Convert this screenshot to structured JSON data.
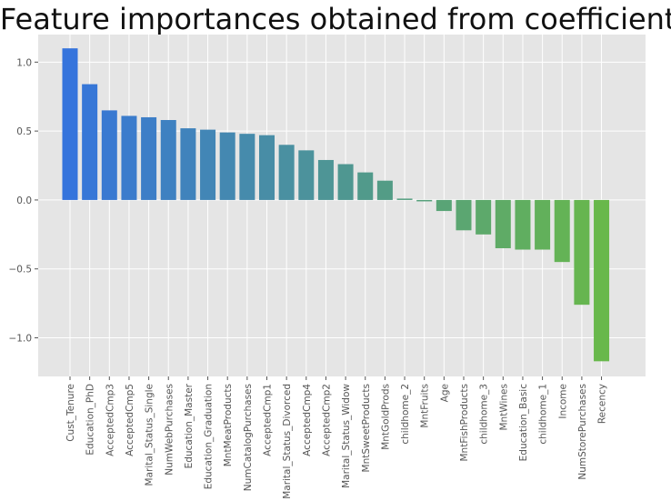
{
  "chart_data": {
    "type": "bar",
    "title": "Feature importances obtained from coefficients",
    "xlabel": "",
    "ylabel": "",
    "ylim": [
      -1.28,
      1.2
    ],
    "yticks": [
      -1.0,
      -0.5,
      0.0,
      0.5,
      1.0
    ],
    "ytick_labels": [
      "−1.0",
      "−0.5",
      "0.0",
      "0.5",
      "1.0"
    ],
    "grid": true,
    "legend": "none",
    "style": "ggplot",
    "background_color": "#e5e5e5",
    "grid_color": "#ffffff",
    "color_start": "#3574dc",
    "color_end": "#68b84b",
    "categories": [
      "Cust_Tenure",
      "Education_PhD",
      "AcceptedCmp3",
      "AcceptedCmp5",
      "Marital_Status_Single",
      "NumWebPurchases",
      "Education_Master",
      "Education_Graduation",
      "MntMeatProducts",
      "NumCatalogPurchases",
      "AcceptedCmp1",
      "Marital_Status_Divorced",
      "AcceptedCmp4",
      "AcceptedCmp2",
      "Marital_Status_Widow",
      "MntSweetProducts",
      "MntGoldProds",
      "childhome_2",
      "MntFruits",
      "Age",
      "MntFishProducts",
      "childhome_3",
      "MntWines",
      "Education_Basic",
      "childhome_1",
      "Income",
      "NumStorePurchases",
      "Recency"
    ],
    "values": [
      1.1,
      0.84,
      0.65,
      0.61,
      0.6,
      0.58,
      0.52,
      0.51,
      0.49,
      0.48,
      0.47,
      0.4,
      0.36,
      0.29,
      0.26,
      0.2,
      0.14,
      0.01,
      -0.01,
      -0.08,
      -0.22,
      -0.25,
      -0.35,
      -0.36,
      -0.36,
      -0.45,
      -0.76,
      -1.17
    ]
  }
}
